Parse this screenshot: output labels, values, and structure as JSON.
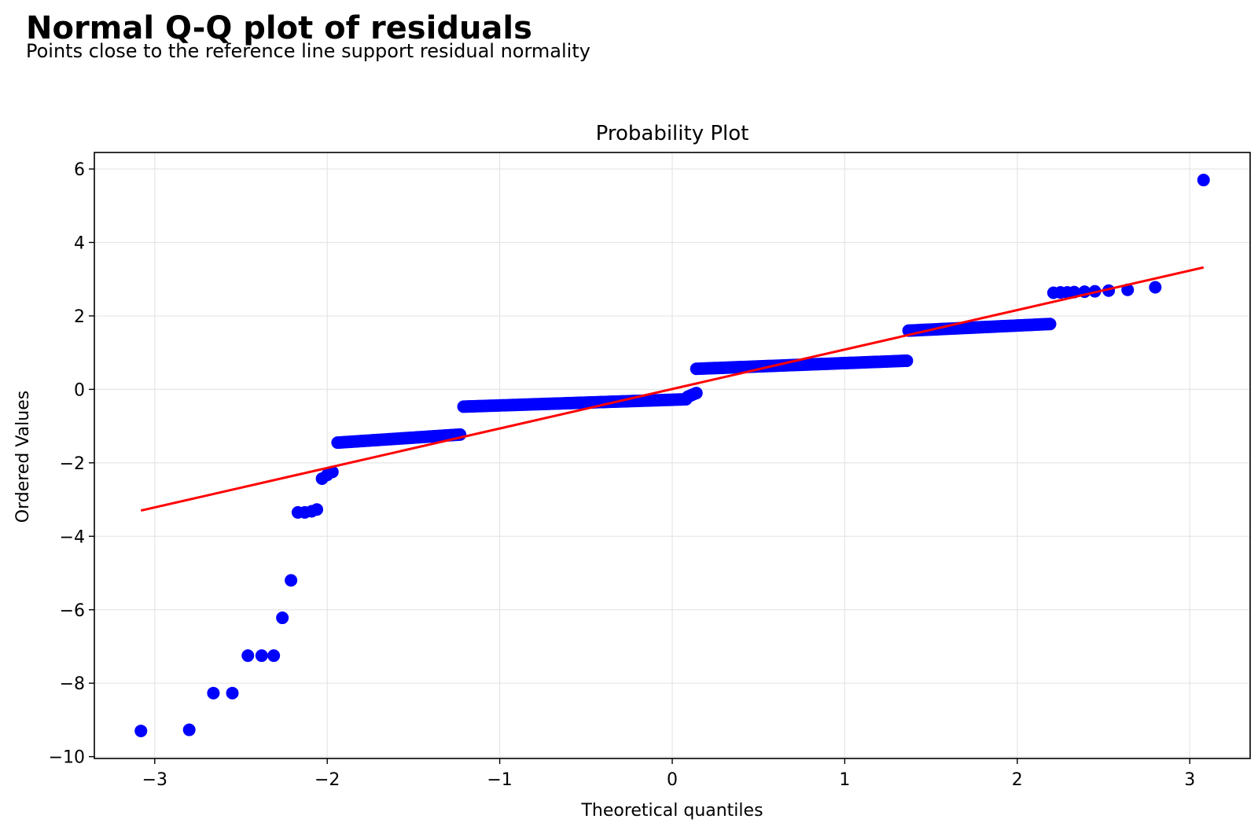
{
  "header": {
    "title": "Normal Q-Q plot of residuals",
    "subtitle": "Points close to the reference line support residual normality"
  },
  "colors": {
    "points": "#0000ff",
    "fit_line": "#ff0000",
    "grid": "#e6e6e6",
    "axis": "#000000"
  },
  "chart_data": {
    "type": "scatter",
    "title": "Probability Plot",
    "xlabel": "Theoretical quantiles",
    "ylabel": "Ordered Values",
    "xlim": [
      -3.35,
      3.35
    ],
    "ylim": [
      -10.05,
      6.45
    ],
    "x_ticks": [
      -3,
      -2,
      -1,
      0,
      1,
      2,
      3
    ],
    "x_tick_labels": [
      "−3",
      "−2",
      "−1",
      "0",
      "1",
      "2",
      "3"
    ],
    "y_ticks": [
      -10,
      -8,
      -6,
      -4,
      -2,
      0,
      2,
      4,
      6
    ],
    "y_tick_labels": [
      "−10",
      "−8",
      "−6",
      "−4",
      "−2",
      "0",
      "2",
      "4",
      "6"
    ],
    "grid": true,
    "series": [
      {
        "kind": "scatter",
        "points": [
          [
            -3.08,
            -9.3
          ],
          [
            -2.8,
            -9.27
          ],
          [
            -2.66,
            -8.27
          ],
          [
            -2.55,
            -8.27
          ],
          [
            -2.46,
            -7.25
          ],
          [
            -2.38,
            -7.25
          ],
          [
            -2.31,
            -7.25
          ],
          [
            -2.26,
            -6.22
          ],
          [
            -2.21,
            -5.2
          ],
          [
            -2.17,
            -3.35
          ],
          [
            -2.13,
            -3.35
          ],
          [
            -2.09,
            -3.32
          ],
          [
            -2.06,
            -3.27
          ],
          [
            -2.03,
            -2.43
          ],
          [
            -2.0,
            -2.33
          ],
          [
            -1.97,
            -2.25
          ],
          [
            2.21,
            2.63
          ],
          [
            2.25,
            2.64
          ],
          [
            2.29,
            2.64
          ],
          [
            2.33,
            2.65
          ],
          [
            2.39,
            2.66
          ],
          [
            2.45,
            2.67
          ],
          [
            2.53,
            2.69
          ],
          [
            2.64,
            2.71
          ],
          [
            2.8,
            2.78
          ],
          [
            3.08,
            5.7
          ]
        ],
        "segments": [
          {
            "x_start": -1.94,
            "x_end": -1.23,
            "y_start": -1.45,
            "y_end": -1.23
          },
          {
            "x_start": -1.21,
            "x_end": 0.08,
            "y_start": -0.47,
            "y_end": -0.27
          },
          {
            "x_start": 0.09,
            "x_end": 0.14,
            "y_start": -0.2,
            "y_end": -0.1
          },
          {
            "x_start": 0.14,
            "x_end": 1.36,
            "y_start": 0.56,
            "y_end": 0.78
          },
          {
            "x_start": 1.37,
            "x_end": 2.19,
            "y_start": 1.6,
            "y_end": 1.78
          }
        ]
      },
      {
        "kind": "line",
        "points": [
          [
            -3.08,
            -3.3
          ],
          [
            3.08,
            3.32
          ]
        ]
      }
    ]
  }
}
